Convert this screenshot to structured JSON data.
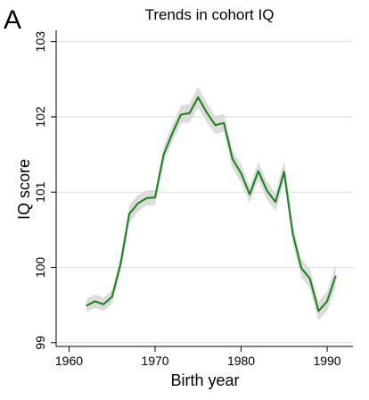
{
  "panel_label": "A",
  "chart_data": {
    "type": "line",
    "title": "Trends in cohort IQ",
    "xlabel": "Birth year",
    "ylabel": "IQ score",
    "xlim": [
      1958.5,
      1993
    ],
    "ylim": [
      98.95,
      103.15
    ],
    "xticks": [
      1960,
      1970,
      1980,
      1990
    ],
    "yticks": [
      99,
      100,
      101,
      102,
      103
    ],
    "grid": "horizontal",
    "colors": {
      "line": "#1a801a",
      "band": "#dcdcdc",
      "grid": "#dddddd",
      "axis": "#000000"
    },
    "series": [
      {
        "x": [
          1962,
          1963,
          1964,
          1965,
          1966,
          1967,
          1968,
          1969,
          1970,
          1971,
          1972,
          1973,
          1974,
          1975,
          1976,
          1977,
          1978,
          1979,
          1980,
          1981,
          1982,
          1983,
          1984,
          1985,
          1986,
          1987,
          1988,
          1989,
          1990,
          1991
        ],
        "y": [
          99.49,
          99.55,
          99.51,
          99.61,
          100.05,
          100.71,
          100.85,
          100.92,
          100.93,
          101.5,
          101.78,
          102.03,
          102.05,
          102.26,
          102.06,
          101.89,
          101.92,
          101.44,
          101.25,
          100.97,
          101.28,
          101.02,
          100.87,
          101.27,
          100.45,
          99.99,
          99.85,
          99.42,
          99.55,
          99.89
        ],
        "ci_lower": [
          99.41,
          99.46,
          99.42,
          99.52,
          99.95,
          100.59,
          100.74,
          100.82,
          100.83,
          101.39,
          101.67,
          101.91,
          101.93,
          102.12,
          101.93,
          101.77,
          101.8,
          101.32,
          101.13,
          100.86,
          101.16,
          100.9,
          100.75,
          101.13,
          100.32,
          99.87,
          99.72,
          99.3,
          99.42,
          99.74
        ],
        "ci_upper": [
          99.58,
          99.64,
          99.6,
          99.7,
          100.15,
          100.83,
          100.96,
          101.02,
          101.03,
          101.61,
          101.89,
          102.15,
          102.17,
          102.4,
          102.19,
          102.01,
          102.04,
          101.56,
          101.37,
          101.08,
          101.4,
          101.14,
          100.99,
          101.41,
          100.58,
          100.11,
          99.98,
          99.54,
          99.68,
          100.04
        ]
      }
    ]
  }
}
